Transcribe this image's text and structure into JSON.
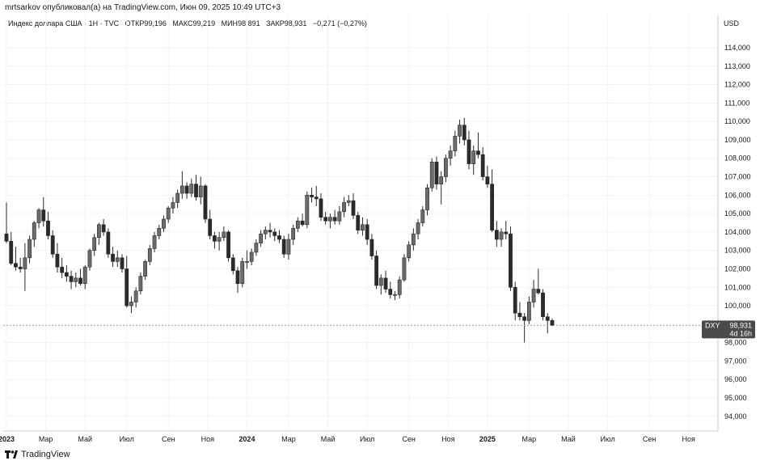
{
  "header": {
    "publisher_line": "mrtsarkov опубликовал(а) на TradingView.com, Июн 09, 2025 10:49 UTC+3"
  },
  "legend": {
    "symbol": "Индекс доллара США · 1Н · TVC",
    "open_label": "ОТКР",
    "open_value": "99,196",
    "high_label": "МАКС",
    "high_value": "99,219",
    "low_label": "МИН",
    "low_value": "98,891",
    "close_label": "ЗАКР",
    "close_value": "98,931",
    "change": "−0,271 (−0,27%)"
  },
  "price_axis": {
    "currency": "USD"
  },
  "price_tag": {
    "symbol": "DXY",
    "price": "98,931",
    "countdown": "4d 16h"
  },
  "footer": {
    "brand": "TradingView"
  },
  "colors": {
    "candle": "#2a2a2a",
    "grid": "#f0f3fa",
    "axis_text": "#131722",
    "tag_bg": "#4a4a4a"
  },
  "chart_data": {
    "type": "candlestick",
    "title": "Индекс доллара США · 1Н · TVC",
    "y_ticks": [
      "94,000",
      "95,000",
      "96,000",
      "97,000",
      "98,000",
      "99,000",
      "100,000",
      "101,000",
      "102,000",
      "103,000",
      "104,000",
      "105,000",
      "106,000",
      "107,000",
      "108,000",
      "109,000",
      "110,000",
      "111,000",
      "112,000",
      "113,000",
      "114,000"
    ],
    "y_tick_values": [
      94,
      95,
      96,
      97,
      98,
      99,
      100,
      101,
      102,
      103,
      104,
      105,
      106,
      107,
      108,
      109,
      110,
      111,
      112,
      113,
      114
    ],
    "x_ticks": [
      "2023",
      "Мар",
      "Май",
      "Июл",
      "Сен",
      "Ноя",
      "2024",
      "Мар",
      "Май",
      "Июл",
      "Сен",
      "Ноя",
      "2025",
      "Мар",
      "Май",
      "Июл",
      "Сен",
      "Ноя"
    ],
    "x_tick_weeks": [
      0,
      8.5,
      17,
      26,
      35,
      43.5,
      52,
      61,
      69.5,
      78,
      87,
      95.5,
      104,
      113,
      121.5,
      130,
      139,
      147.5
    ],
    "ylim": [
      93.2,
      115.8
    ],
    "grid": true,
    "candles_ohlc": [
      [
        103.9,
        105.6,
        103.4,
        103.5
      ],
      [
        103.5,
        104.0,
        102.2,
        102.3
      ],
      [
        102.3,
        103.2,
        101.9,
        102.1
      ],
      [
        102.1,
        102.6,
        101.8,
        102.0
      ],
      [
        102.0,
        103.4,
        100.8,
        102.6
      ],
      [
        102.6,
        103.8,
        102.3,
        103.6
      ],
      [
        103.6,
        104.6,
        103.2,
        104.5
      ],
      [
        104.5,
        105.3,
        104.2,
        105.2
      ],
      [
        105.2,
        105.9,
        104.3,
        104.6
      ],
      [
        104.6,
        105.1,
        103.6,
        103.8
      ],
      [
        103.8,
        104.1,
        102.6,
        102.8
      ],
      [
        102.8,
        103.4,
        101.8,
        102.1
      ],
      [
        102.1,
        102.6,
        101.5,
        101.8
      ],
      [
        101.8,
        102.2,
        101.3,
        101.6
      ],
      [
        101.6,
        101.9,
        100.9,
        101.3
      ],
      [
        101.3,
        101.8,
        101.0,
        101.5
      ],
      [
        101.5,
        102.0,
        101.1,
        101.2
      ],
      [
        101.2,
        102.2,
        100.9,
        102.1
      ],
      [
        102.1,
        103.1,
        101.9,
        103.0
      ],
      [
        103.0,
        103.9,
        102.7,
        103.7
      ],
      [
        103.7,
        104.5,
        103.3,
        104.4
      ],
      [
        104.4,
        104.7,
        103.8,
        104.0
      ],
      [
        104.0,
        104.2,
        102.6,
        102.8
      ],
      [
        102.8,
        103.2,
        102.1,
        102.4
      ],
      [
        102.4,
        103.0,
        102.1,
        102.6
      ],
      [
        102.6,
        102.8,
        101.8,
        102.0
      ],
      [
        102.0,
        102.7,
        99.9,
        100.0
      ],
      [
        100.0,
        100.5,
        99.6,
        100.2
      ],
      [
        100.2,
        101.0,
        99.9,
        100.8
      ],
      [
        100.8,
        101.8,
        100.6,
        101.6
      ],
      [
        101.6,
        102.5,
        101.4,
        102.4
      ],
      [
        102.4,
        103.3,
        102.2,
        103.1
      ],
      [
        103.1,
        104.0,
        102.9,
        103.8
      ],
      [
        103.8,
        104.4,
        103.6,
        104.2
      ],
      [
        104.2,
        104.9,
        104.0,
        104.7
      ],
      [
        104.7,
        105.4,
        104.5,
        105.3
      ],
      [
        105.3,
        105.9,
        105.0,
        105.6
      ],
      [
        105.6,
        106.3,
        105.3,
        106.1
      ],
      [
        106.1,
        107.3,
        105.8,
        106.5
      ],
      [
        106.5,
        106.7,
        105.8,
        106.1
      ],
      [
        106.1,
        106.9,
        105.9,
        106.6
      ],
      [
        106.6,
        107.1,
        105.7,
        105.9
      ],
      [
        105.9,
        107.0,
        105.5,
        106.5
      ],
      [
        106.5,
        106.6,
        104.5,
        104.7
      ],
      [
        104.7,
        105.2,
        103.6,
        103.8
      ],
      [
        103.8,
        104.0,
        103.1,
        103.5
      ],
      [
        103.5,
        104.0,
        103.0,
        103.7
      ],
      [
        103.7,
        104.3,
        103.5,
        104.0
      ],
      [
        104.0,
        104.1,
        102.4,
        102.6
      ],
      [
        102.6,
        102.8,
        101.7,
        101.9
      ],
      [
        101.9,
        102.1,
        100.7,
        101.2
      ],
      [
        101.2,
        102.6,
        101.0,
        102.4
      ],
      [
        102.4,
        103.0,
        102.0,
        102.4
      ],
      [
        102.4,
        103.1,
        102.2,
        102.9
      ],
      [
        102.9,
        103.6,
        102.7,
        103.4
      ],
      [
        103.4,
        104.1,
        103.2,
        103.9
      ],
      [
        103.9,
        104.3,
        103.6,
        104.1
      ],
      [
        104.1,
        104.5,
        103.7,
        104.0
      ],
      [
        104.0,
        104.2,
        103.5,
        103.8
      ],
      [
        103.8,
        104.1,
        103.4,
        103.6
      ],
      [
        103.6,
        103.8,
        102.6,
        102.8
      ],
      [
        102.8,
        103.9,
        102.5,
        103.6
      ],
      [
        103.6,
        104.4,
        103.3,
        104.2
      ],
      [
        104.2,
        104.8,
        104.0,
        104.6
      ],
      [
        104.6,
        105.0,
        104.3,
        104.4
      ],
      [
        104.4,
        106.2,
        104.2,
        106.0
      ],
      [
        106.0,
        106.4,
        105.6,
        105.9
      ],
      [
        105.9,
        106.5,
        105.4,
        105.8
      ],
      [
        105.8,
        106.1,
        104.6,
        104.8
      ],
      [
        104.8,
        105.1,
        104.4,
        104.6
      ],
      [
        104.6,
        105.0,
        104.2,
        104.8
      ],
      [
        104.8,
        105.2,
        104.4,
        104.6
      ],
      [
        104.6,
        105.4,
        104.4,
        105.1
      ],
      [
        105.1,
        105.9,
        104.8,
        105.6
      ],
      [
        105.6,
        106.0,
        105.4,
        105.7
      ],
      [
        105.7,
        106.1,
        104.7,
        104.9
      ],
      [
        104.9,
        105.1,
        103.9,
        104.1
      ],
      [
        104.1,
        104.8,
        103.8,
        104.4
      ],
      [
        104.4,
        104.7,
        103.3,
        103.6
      ],
      [
        103.6,
        103.9,
        102.5,
        102.7
      ],
      [
        102.7,
        103.0,
        100.9,
        101.1
      ],
      [
        101.1,
        101.7,
        100.6,
        101.5
      ],
      [
        101.5,
        101.9,
        100.7,
        100.9
      ],
      [
        100.9,
        101.3,
        100.4,
        100.6
      ],
      [
        100.6,
        100.8,
        100.3,
        100.6
      ],
      [
        100.6,
        101.6,
        100.4,
        101.4
      ],
      [
        101.4,
        102.8,
        101.3,
        102.6
      ],
      [
        102.6,
        103.5,
        102.4,
        103.3
      ],
      [
        103.3,
        104.2,
        103.0,
        103.9
      ],
      [
        103.9,
        104.7,
        103.6,
        104.5
      ],
      [
        104.5,
        105.4,
        104.3,
        105.2
      ],
      [
        105.2,
        106.6,
        104.9,
        106.4
      ],
      [
        106.4,
        108.0,
        106.2,
        107.8
      ],
      [
        107.8,
        108.1,
        106.3,
        106.6
      ],
      [
        106.6,
        107.3,
        105.5,
        107.0
      ],
      [
        107.0,
        108.2,
        106.7,
        108.0
      ],
      [
        108.0,
        108.7,
        107.6,
        108.4
      ],
      [
        108.4,
        109.5,
        108.1,
        109.2
      ],
      [
        109.2,
        110.1,
        108.8,
        109.8
      ],
      [
        109.8,
        110.2,
        108.7,
        109.0
      ],
      [
        109.0,
        109.5,
        107.4,
        107.7
      ],
      [
        107.7,
        108.7,
        107.1,
        108.4
      ],
      [
        108.4,
        109.4,
        108.0,
        108.2
      ],
      [
        108.2,
        108.6,
        106.8,
        107.0
      ],
      [
        107.0,
        107.6,
        106.4,
        106.6
      ],
      [
        106.6,
        107.4,
        104.0,
        104.1
      ],
      [
        104.1,
        104.6,
        103.2,
        103.6
      ],
      [
        103.6,
        104.2,
        103.2,
        104.0
      ],
      [
        104.0,
        104.6,
        103.6,
        103.9
      ],
      [
        103.9,
        104.3,
        100.8,
        101.0
      ],
      [
        101.0,
        101.3,
        99.2,
        99.6
      ],
      [
        99.6,
        100.2,
        99.2,
        99.4
      ],
      [
        99.4,
        99.6,
        98.0,
        99.2
      ],
      [
        99.2,
        100.5,
        99.0,
        100.2
      ],
      [
        100.2,
        101.4,
        99.9,
        100.9
      ],
      [
        100.9,
        102.0,
        100.6,
        100.7
      ],
      [
        100.7,
        100.9,
        99.2,
        99.4
      ],
      [
        99.4,
        99.6,
        98.5,
        99.2
      ],
      [
        99.2,
        99.3,
        98.9,
        98.93
      ]
    ]
  }
}
